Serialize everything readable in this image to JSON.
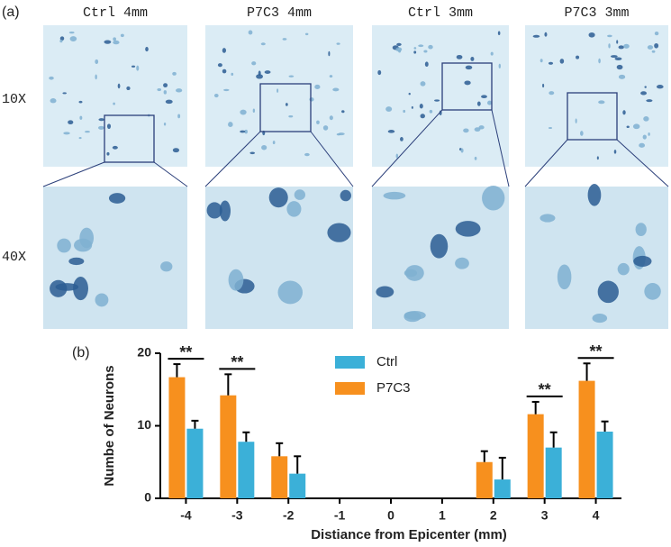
{
  "panel_a": {
    "label": "(a)",
    "columns": [
      "Ctrl 4mm",
      "P7C3 4mm",
      "Ctrl 3mm",
      "P7C3 3mm"
    ],
    "rows": [
      "10X",
      "40X"
    ]
  },
  "chart_data": {
    "type": "bar",
    "panel_label": "(b)",
    "x_label": "Distiance from Epicenter (mm)",
    "y_label": "Numbe of Neurons",
    "categories": [
      "-4",
      "-3",
      "-2",
      "-1",
      "0",
      "1",
      "2",
      "3",
      "4"
    ],
    "series": [
      {
        "name": "P7C3",
        "color": "#f7901e",
        "values": [
          16.7,
          14.2,
          5.8,
          null,
          null,
          null,
          5.0,
          11.6,
          16.2
        ],
        "errors": [
          1.8,
          2.9,
          1.8,
          null,
          null,
          null,
          1.5,
          1.7,
          2.4
        ]
      },
      {
        "name": "Ctrl",
        "color": "#3bb0d8",
        "values": [
          9.6,
          7.8,
          3.4,
          null,
          null,
          null,
          2.6,
          7.0,
          9.2
        ],
        "errors": [
          1.1,
          1.3,
          2.4,
          null,
          null,
          null,
          3.0,
          2.1,
          1.4
        ]
      }
    ],
    "significance": [
      "**",
      "**",
      null,
      null,
      null,
      null,
      null,
      "**",
      "**"
    ],
    "ylim": [
      0,
      20
    ],
    "yticks": [
      0,
      10,
      20
    ]
  }
}
